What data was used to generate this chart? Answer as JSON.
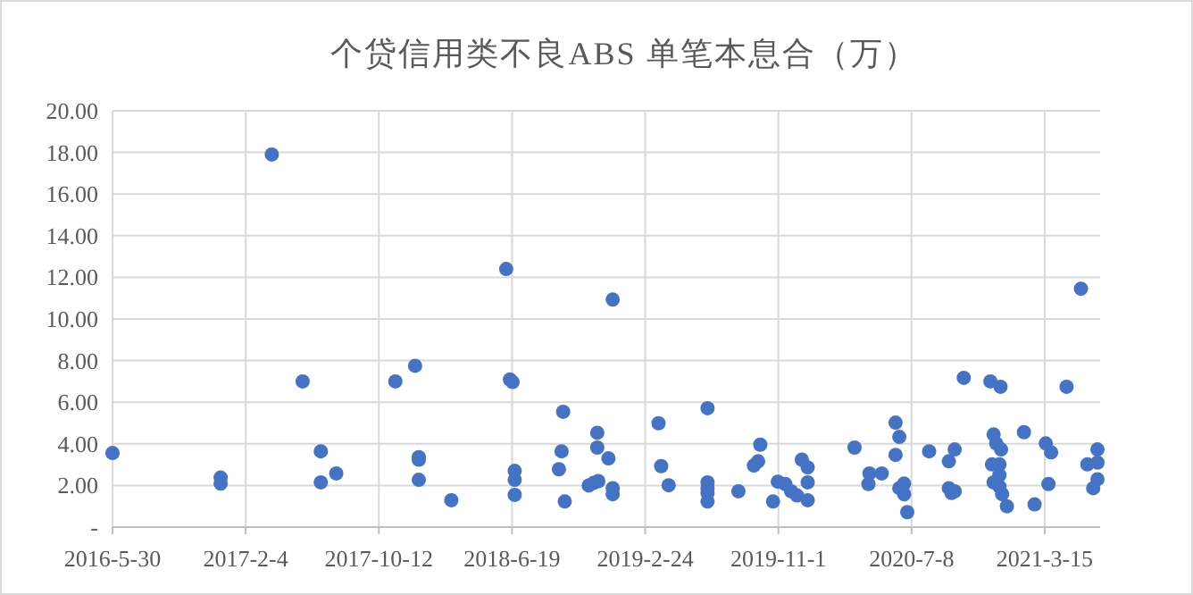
{
  "chart_data": {
    "type": "scatter",
    "title": "个贷信用类不良ABS 单笔本息合（万）",
    "xlim": [
      "2016-05-30",
      "2021-06-27"
    ],
    "xticks": [
      {
        "value": "2016-05-30",
        "label": "2016-5-30"
      },
      {
        "value": "2017-02-04",
        "label": "2017-2-4"
      },
      {
        "value": "2017-10-12",
        "label": "2017-10-12"
      },
      {
        "value": "2018-06-19",
        "label": "2018-6-19"
      },
      {
        "value": "2019-02-24",
        "label": "2019-2-24"
      },
      {
        "value": "2019-11-01",
        "label": "2019-11-1"
      },
      {
        "value": "2020-07-08",
        "label": "2020-7-8"
      },
      {
        "value": "2021-03-15",
        "label": "2021-3-15"
      }
    ],
    "ylim": [
      0,
      20
    ],
    "yticks": [
      {
        "value": 0,
        "label": "-"
      },
      {
        "value": 2,
        "label": "2.00"
      },
      {
        "value": 4,
        "label": "4.00"
      },
      {
        "value": 6,
        "label": "6.00"
      },
      {
        "value": 8,
        "label": "8.00"
      },
      {
        "value": 10,
        "label": "10.00"
      },
      {
        "value": 12,
        "label": "12.00"
      },
      {
        "value": 14,
        "label": "14.00"
      },
      {
        "value": 16,
        "label": "16.00"
      },
      {
        "value": 18,
        "label": "18.00"
      },
      {
        "value": 20,
        "label": "20.00"
      }
    ],
    "grid": true,
    "marker": "circle",
    "series": [
      {
        "color": "#4472c4",
        "x": [
          "2016-05-30",
          "2016-12-19",
          "2016-12-19",
          "2017-03-25",
          "2017-05-22",
          "2017-06-25",
          "2017-06-25",
          "2017-07-24",
          "2017-11-12",
          "2017-12-19",
          "2017-12-26",
          "2017-12-26",
          "2017-12-26",
          "2018-02-25",
          "2018-06-08",
          "2018-06-15",
          "2018-06-20",
          "2018-06-24",
          "2018-06-24",
          "2018-06-24",
          "2018-09-15",
          "2018-09-20",
          "2018-09-23",
          "2018-09-26",
          "2018-11-10",
          "2018-11-19",
          "2018-11-28",
          "2018-11-26",
          "2018-11-26",
          "2018-12-17",
          "2018-12-25",
          "2018-12-25",
          "2018-12-25",
          "2019-03-21",
          "2019-03-26",
          "2019-04-09",
          "2019-06-21",
          "2019-06-21",
          "2019-06-21",
          "2019-06-21",
          "2019-06-21",
          "2019-08-18",
          "2019-09-16",
          "2019-09-24",
          "2019-09-28",
          "2019-10-22",
          "2019-10-31",
          "2019-11-14",
          "2019-11-25",
          "2019-12-06",
          "2019-12-15",
          "2019-12-26",
          "2019-12-26",
          "2019-12-26",
          "2020-03-23",
          "2020-04-18",
          "2020-04-20",
          "2020-05-13",
          "2020-06-08",
          "2020-06-15",
          "2020-06-08",
          "2020-06-24",
          "2020-06-15",
          "2020-06-24",
          "2020-06-30",
          "2020-08-10",
          "2020-09-16",
          "2020-09-27",
          "2020-09-16",
          "2020-09-21",
          "2020-09-27",
          "2020-10-14",
          "2020-12-03",
          "2020-12-22",
          "2020-12-09",
          "2020-12-14",
          "2020-12-23",
          "2020-12-06",
          "2020-12-20",
          "2020-12-20",
          "2020-12-09",
          "2020-12-20",
          "2020-12-25",
          "2021-01-03",
          "2021-02-04",
          "2021-02-24",
          "2021-03-17",
          "2021-03-27",
          "2021-03-22",
          "2021-04-25",
          "2021-05-22",
          "2021-06-03",
          "2021-06-22",
          "2021-06-22",
          "2021-06-22",
          "2021-06-14"
        ],
        "values": [
          3.56,
          2.38,
          2.09,
          17.9,
          7.0,
          3.64,
          2.15,
          2.58,
          7.0,
          7.75,
          3.36,
          3.24,
          2.27,
          1.29,
          12.4,
          7.09,
          6.97,
          2.7,
          2.27,
          1.55,
          2.78,
          3.64,
          5.54,
          1.23,
          2.0,
          2.12,
          2.21,
          4.53,
          3.82,
          3.3,
          10.93,
          1.87,
          1.58,
          4.99,
          2.93,
          2.01,
          5.71,
          2.15,
          1.87,
          1.64,
          1.23,
          1.72,
          2.96,
          3.16,
          3.96,
          1.23,
          2.18,
          2.07,
          1.72,
          1.52,
          3.24,
          2.87,
          2.15,
          1.29,
          3.82,
          2.07,
          2.58,
          2.58,
          5.02,
          4.33,
          3.47,
          2.09,
          1.87,
          1.58,
          0.72,
          3.64,
          3.16,
          3.73,
          1.87,
          1.64,
          1.72,
          7.17,
          7.0,
          6.74,
          4.45,
          4.02,
          3.73,
          3.01,
          3.01,
          2.5,
          2.15,
          1.95,
          1.58,
          1.0,
          4.56,
          1.09,
          4.02,
          3.59,
          2.07,
          6.74,
          11.45,
          3.01,
          3.73,
          3.1,
          2.3,
          1.87
        ]
      }
    ]
  }
}
